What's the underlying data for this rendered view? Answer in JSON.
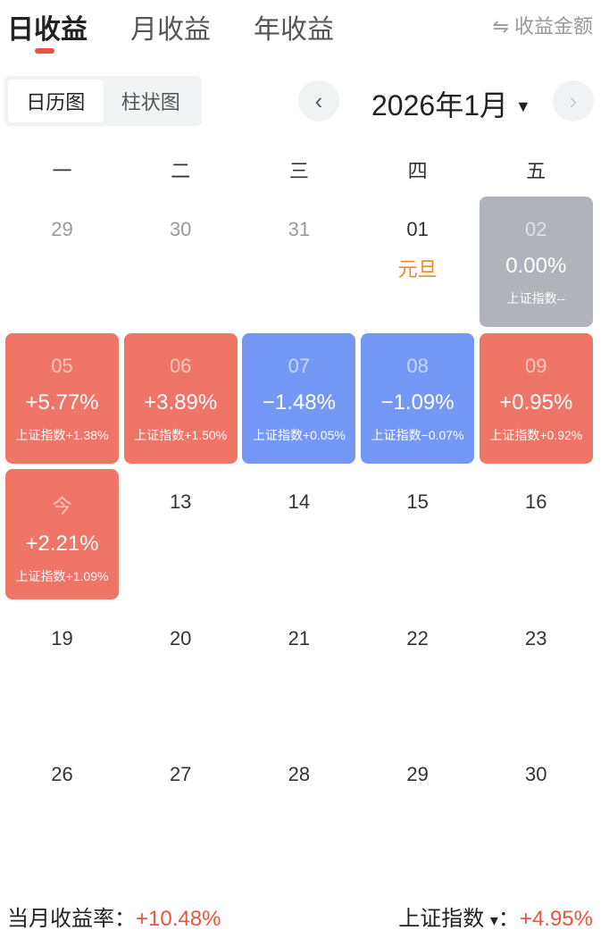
{
  "tabs": [
    {
      "label": "日收益",
      "active": true
    },
    {
      "label": "月收益"
    },
    {
      "label": "年收益"
    }
  ],
  "switch_label": "⇋ 收益金额",
  "view_toggle": [
    {
      "label": "日历图",
      "active": true
    },
    {
      "label": "柱状图"
    }
  ],
  "month_label": "2026年1月",
  "month_dropdown_icon": "▼",
  "prev_icon": "‹",
  "next_icon": "›",
  "weekdays": [
    "一",
    "二",
    "三",
    "四",
    "五"
  ],
  "colors": {
    "up": "#ef7566",
    "down": "#7598f7",
    "flat": "#b0b3ba",
    "accent": "#ee5340",
    "holiday": "#f08a24"
  },
  "days": [
    {
      "day": "29",
      "muted": true
    },
    {
      "day": "30",
      "muted": true
    },
    {
      "day": "31",
      "muted": true
    },
    {
      "day": "01",
      "holiday": "元旦"
    },
    {
      "day": "02",
      "pct": "0.00%",
      "index": "上证指数--",
      "state": "flat"
    },
    {
      "day": "05",
      "pct": "+5.77%",
      "index": "上证指数+1.38%",
      "state": "up"
    },
    {
      "day": "06",
      "pct": "+3.89%",
      "index": "上证指数+1.50%",
      "state": "up"
    },
    {
      "day": "07",
      "pct": "−1.48%",
      "index": "上证指数+0.05%",
      "state": "down"
    },
    {
      "day": "08",
      "pct": "−1.09%",
      "index": "上证指数−0.07%",
      "state": "down"
    },
    {
      "day": "09",
      "pct": "+0.95%",
      "index": "上证指数+0.92%",
      "state": "up"
    },
    {
      "day": "今",
      "pct": "+2.21%",
      "index": "上证指数+1.09%",
      "state": "up"
    },
    {
      "day": "13"
    },
    {
      "day": "14"
    },
    {
      "day": "15"
    },
    {
      "day": "16"
    },
    {
      "day": "19"
    },
    {
      "day": "20"
    },
    {
      "day": "21"
    },
    {
      "day": "22"
    },
    {
      "day": "23"
    },
    {
      "day": "26"
    },
    {
      "day": "27"
    },
    {
      "day": "28"
    },
    {
      "day": "29"
    },
    {
      "day": "30"
    }
  ],
  "footer": {
    "month_rate_label": "当月收益率：",
    "month_rate": "+10.48%",
    "index_label": "上证指数",
    "index_dropdown_icon": "▾",
    "index_sep": "：",
    "index_value": "+4.95%"
  }
}
